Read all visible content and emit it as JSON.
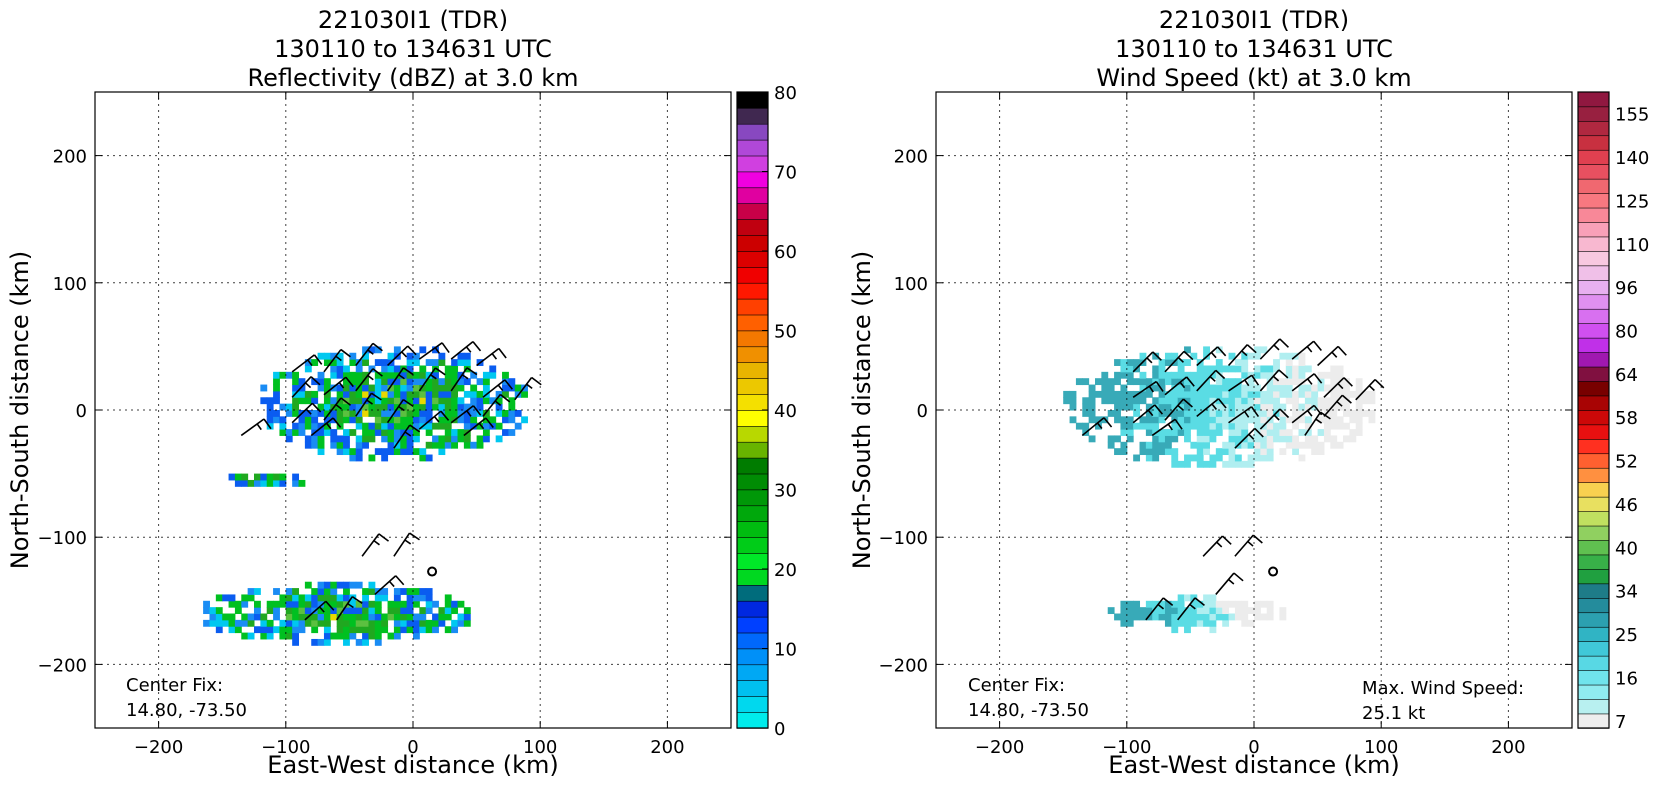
{
  "chart_data": [
    {
      "type": "heatmap",
      "title": [
        "221030I1 (TDR)",
        "130110 to 134631 UTC",
        "Reflectivity (dBZ) at 3.0 km"
      ],
      "xlabel": "East-West distance (km)",
      "ylabel": "North-South distance (km)",
      "xlim": [
        -250,
        250
      ],
      "ylim": [
        -250,
        250
      ],
      "xticks": [
        -200,
        -100,
        0,
        100,
        200
      ],
      "yticks": [
        -200,
        -100,
        0,
        100,
        200
      ],
      "grid": true,
      "colorbar": {
        "min": 0,
        "max": 80,
        "ticks": [
          0,
          10,
          20,
          30,
          40,
          50,
          60,
          70,
          80
        ],
        "colors": [
          "#00ecec",
          "#00d8ee",
          "#00c0f0",
          "#00a8f4",
          "#0090f8",
          "#0068fc",
          "#0040ff",
          "#0028e0",
          "#006c7c",
          "#00d820",
          "#00e828",
          "#00cc18",
          "#00bc10",
          "#00a80c",
          "#009808",
          "#008c04",
          "#007c00",
          "#68b400",
          "#b8d800",
          "#ffff00",
          "#f4e000",
          "#ecc800",
          "#e8b400",
          "#f09000",
          "#f47800",
          "#ff6000",
          "#ff4000",
          "#ff1800",
          "#f00000",
          "#dc0000",
          "#cc0000",
          "#c00010",
          "#c80048",
          "#e000a0",
          "#f000e0",
          "#d040e0",
          "#b048d8",
          "#8848c0",
          "#402850",
          "#000000"
        ]
      },
      "annotation": {
        "label": "Center Fix:",
        "value": "14.80, -73.50"
      },
      "echo_regions": [
        {
          "x": [
            -120,
            85
          ],
          "y": [
            -40,
            45
          ]
        },
        {
          "x": [
            -170,
            45
          ],
          "y": [
            -185,
            -140
          ]
        },
        {
          "x": [
            -150,
            -85
          ],
          "y": [
            -62,
            -52
          ]
        }
      ]
    },
    {
      "type": "heatmap",
      "title": [
        "221030I1 (TDR)",
        "130110 to 134631 UTC",
        "Wind Speed (kt) at 3.0 km"
      ],
      "xlabel": "East-West distance (km)",
      "ylabel": "North-South distance (km)",
      "xlim": [
        -250,
        250
      ],
      "ylim": [
        -250,
        250
      ],
      "xticks": [
        -200,
        -100,
        0,
        100,
        200
      ],
      "yticks": [
        -200,
        -100,
        0,
        100,
        200
      ],
      "grid": true,
      "colorbar": {
        "tick_labels": [
          "7",
          "16",
          "25",
          "34",
          "40",
          "46",
          "52",
          "58",
          "64",
          "80",
          "96",
          "110",
          "125",
          "140",
          "155"
        ],
        "colors": [
          "#eeeeee",
          "#b8f0f0",
          "#90ecf0",
          "#70e4ec",
          "#58d8e4",
          "#40c8d8",
          "#30b4c4",
          "#2ca0b0",
          "#248c9c",
          "#1e7c88",
          "#20a040",
          "#38b048",
          "#60c050",
          "#90d060",
          "#c0e060",
          "#e8e060",
          "#f8d050",
          "#ff9040",
          "#ff6030",
          "#ff3020",
          "#e81010",
          "#cc0808",
          "#a80404",
          "#780000",
          "#801040",
          "#a018b0",
          "#c030e8",
          "#d050f0",
          "#d870f0",
          "#e090f0",
          "#e8b0f0",
          "#f0c0e8",
          "#f8c8e0",
          "#f8b8d0",
          "#f8a0b8",
          "#f88898",
          "#f87880",
          "#f06870",
          "#e85060",
          "#e04050",
          "#c83040",
          "#b02840",
          "#982040",
          "#901840"
        ]
      },
      "annotation": {
        "label": "Center Fix:",
        "value": "14.80, -73.50"
      },
      "annotation2": {
        "label": "Max. Wind Speed:",
        "value": "25.1 kt"
      },
      "wind_regions": [
        {
          "x": [
            -150,
            90
          ],
          "y": [
            -45,
            45
          ]
        },
        {
          "x": [
            -115,
            20
          ],
          "y": [
            -175,
            -150
          ]
        }
      ]
    }
  ]
}
